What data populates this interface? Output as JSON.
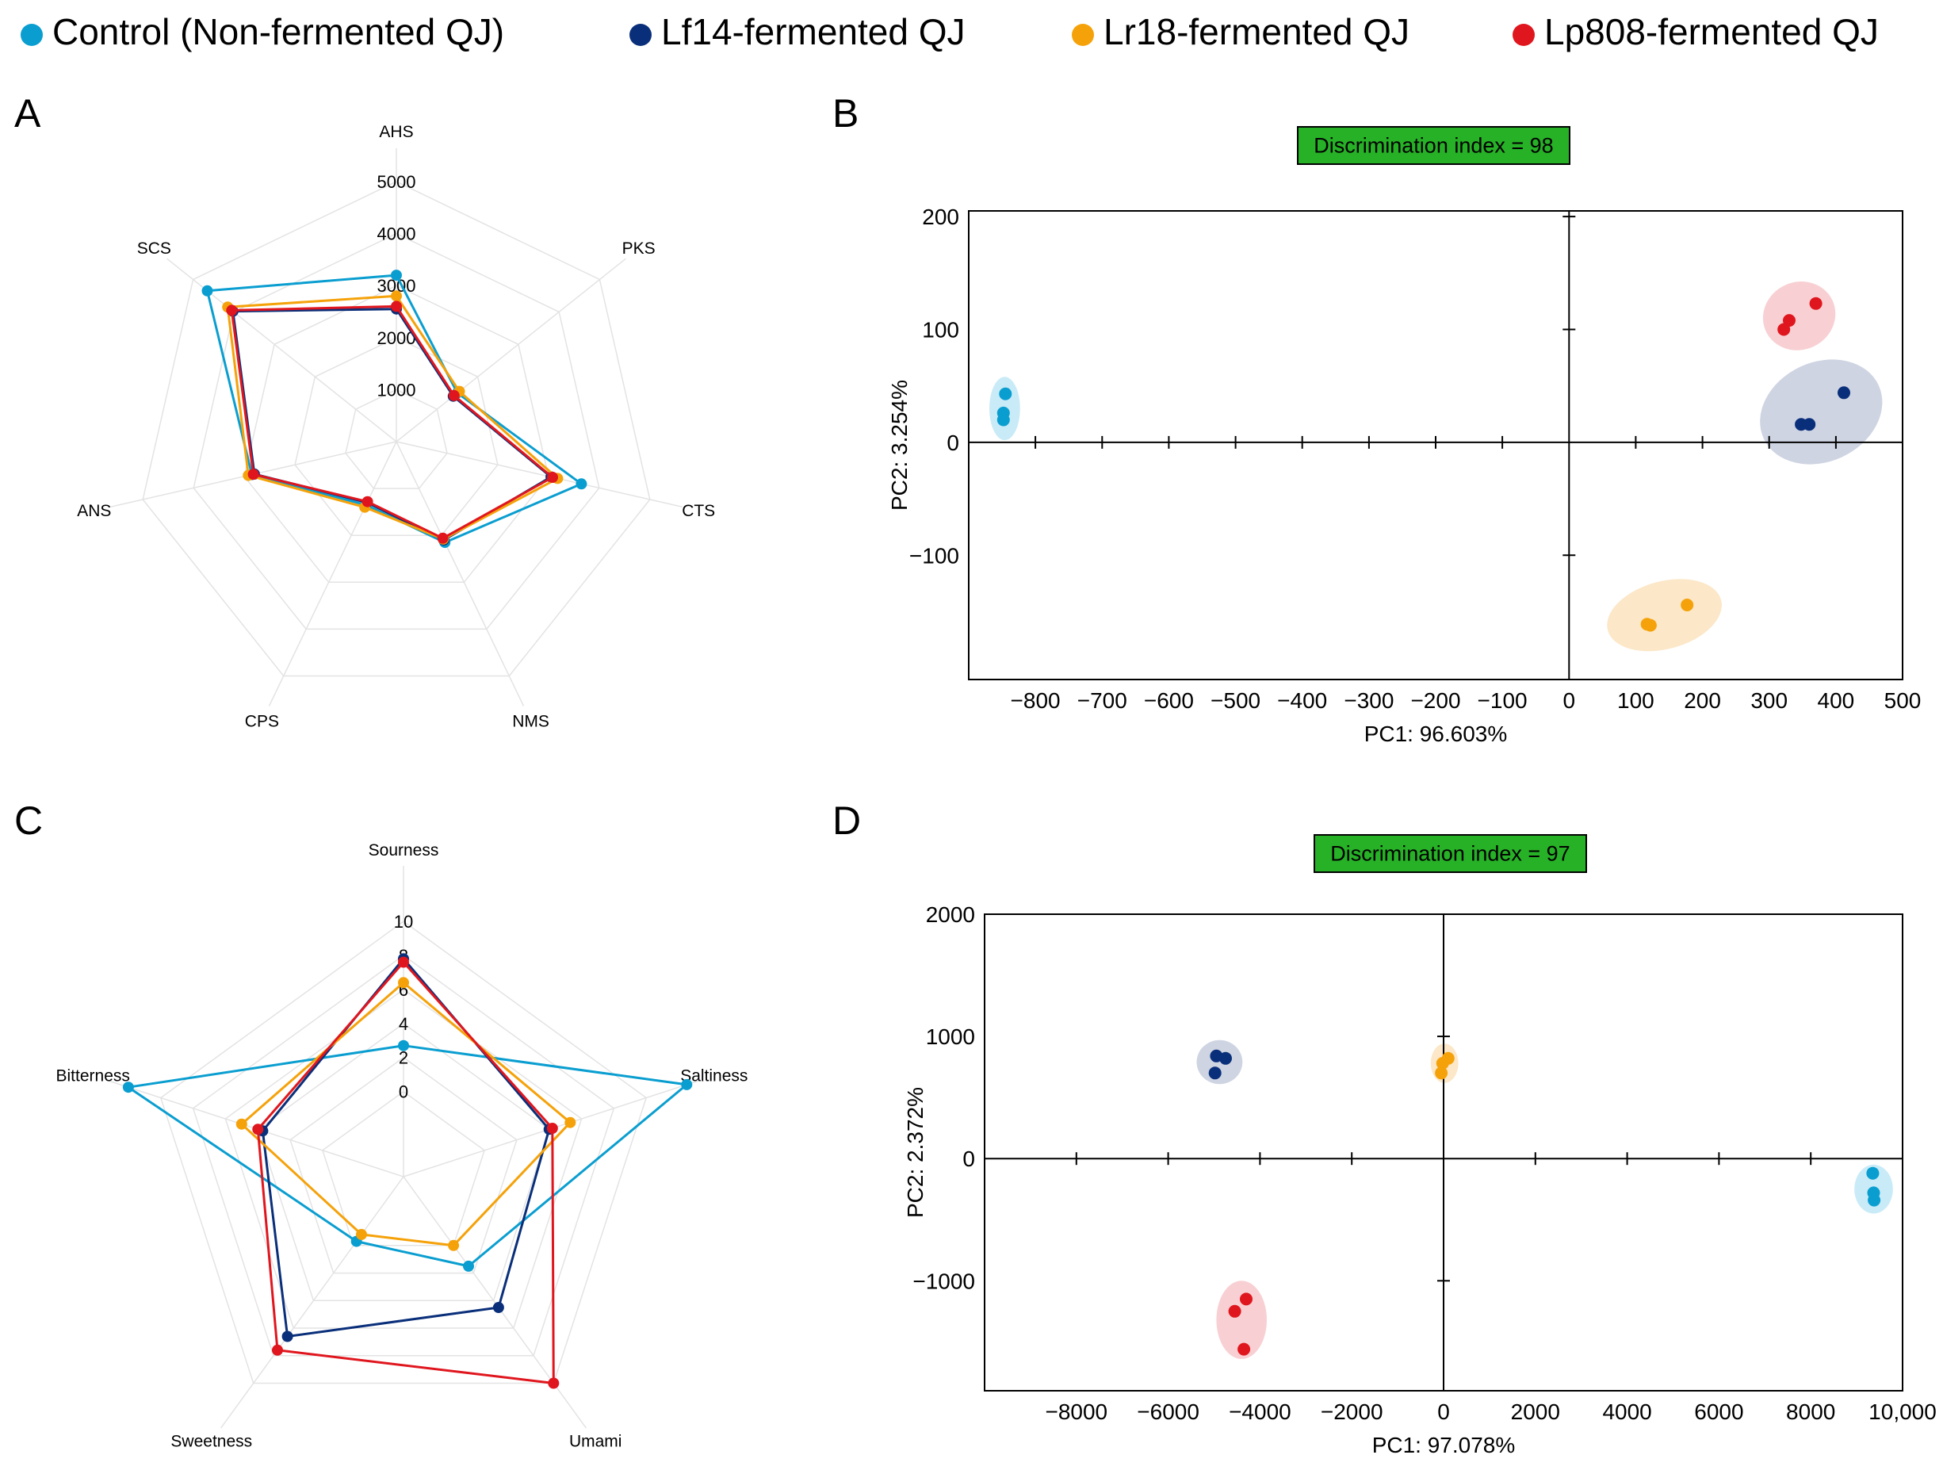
{
  "legend": {
    "items": [
      {
        "label": "Control (Non-fermented QJ)",
        "color": "#0A9ED0"
      },
      {
        "label": "Lf14-fermented QJ",
        "color": "#0A2F7A"
      },
      {
        "label": "Lr18-fermented QJ",
        "color": "#F5A20A"
      },
      {
        "label": "Lp808-fermented QJ",
        "color": "#E0161E"
      }
    ]
  },
  "panels": {
    "a": "A",
    "b": "B",
    "c": "C",
    "d": "D"
  },
  "chart_data": [
    {
      "panel": "A",
      "type": "radar",
      "axes": [
        "AHS",
        "PKS",
        "CTS",
        "NMS",
        "CPS",
        "ANS",
        "SCS"
      ],
      "rings": [
        1000,
        2000,
        3000,
        4000,
        5000
      ],
      "ring_labels": [
        "1000",
        "2000",
        "3000",
        "4000",
        "5000"
      ],
      "max": 5000,
      "series": [
        {
          "name": "Control (Non-fermented QJ)",
          "color": "#0A9ED0",
          "values": [
            3200,
            1500,
            3650,
            2150,
            1350,
            2850,
            4650
          ]
        },
        {
          "name": "Lf14-fermented QJ",
          "color": "#0A2F7A",
          "values": [
            2550,
            1400,
            3050,
            2100,
            1300,
            2800,
            4020
          ]
        },
        {
          "name": "Lr18-fermented QJ",
          "color": "#F5A20A",
          "values": [
            2800,
            1550,
            3180,
            2080,
            1400,
            2920,
            4150
          ]
        },
        {
          "name": "Lp808-fermented QJ",
          "color": "#E0161E",
          "values": [
            2600,
            1420,
            3080,
            2060,
            1280,
            2820,
            4050
          ]
        }
      ]
    },
    {
      "panel": "B",
      "type": "scatter",
      "title": "Discrimination index = 98",
      "xlabel": "PC1: 96.603%",
      "ylabel": "PC2: 3.254%",
      "xlim": [
        -900,
        500
      ],
      "ylim": [
        -210,
        205
      ],
      "xticks": [
        -800,
        -700,
        -600,
        -500,
        -400,
        -300,
        -200,
        -100,
        0,
        100,
        200,
        300,
        400,
        500
      ],
      "xtick_labels": [
        "−800",
        "−700",
        "−600",
        "−500",
        "−400",
        "−300",
        "−200",
        "−100",
        "0",
        "100",
        "200",
        "300",
        "400",
        "500"
      ],
      "yticks": [
        -100,
        0,
        100,
        200
      ],
      "ytick_labels": [
        "−100",
        "0",
        "100",
        "200"
      ],
      "series": [
        {
          "name": "Control (Non-fermented QJ)",
          "color": "#0A9ED0",
          "fill": "#BFE7F6",
          "points": [
            [
              -845,
              43
            ],
            [
              -848,
              26
            ],
            [
              -848,
              20
            ]
          ],
          "ellipse": {
            "cx": -846,
            "cy": 30,
            "rx": 23,
            "ry": 28,
            "angle": 0
          }
        },
        {
          "name": "Lf14-fermented QJ",
          "color": "#0A2F7A",
          "fill": "#C6CCDD",
          "points": [
            [
              412,
              44
            ],
            [
              348,
              16
            ],
            [
              360,
              16
            ]
          ],
          "ellipse": {
            "cx": 378,
            "cy": 27,
            "rx": 95,
            "ry": 44,
            "angle": -25
          }
        },
        {
          "name": "Lr18-fermented QJ",
          "color": "#F5A20A",
          "fill": "#FCE3BE",
          "points": [
            [
              177,
              -144
            ],
            [
              117,
              -161
            ],
            [
              122,
              -162
            ]
          ],
          "ellipse": {
            "cx": 143,
            "cy": -153,
            "rx": 88,
            "ry": 30,
            "angle": -15
          }
        },
        {
          "name": "Lp808-fermented QJ",
          "color": "#E0161E",
          "fill": "#F7C8CB",
          "points": [
            [
              370,
              123
            ],
            [
              322,
              100
            ],
            [
              330,
              108
            ]
          ],
          "ellipse": {
            "cx": 345,
            "cy": 112,
            "rx": 55,
            "ry": 30,
            "angle": -25
          }
        }
      ]
    },
    {
      "panel": "C",
      "type": "radar",
      "axes": [
        "Sourness",
        "Saltiness",
        "Umami",
        "Sweetness",
        "Bitterness"
      ],
      "rings": [
        0,
        2,
        4,
        6,
        8,
        10
      ],
      "ring_labels": [
        "0",
        "2",
        "4",
        "6",
        "8",
        "10"
      ],
      "min": -5,
      "max": 10,
      "series": [
        {
          "name": "Control (Non-fermented QJ)",
          "color": "#0A9ED0",
          "values": [
            2.7,
            12.5,
            1.5,
            -0.3,
            12.0
          ]
        },
        {
          "name": "Lf14-fermented QJ",
          "color": "#0A2F7A",
          "values": [
            7.8,
            4.0,
            4.5,
            6.6,
            3.7
          ]
        },
        {
          "name": "Lr18-fermented QJ",
          "color": "#F5A20A",
          "values": [
            6.4,
            5.3,
            0.0,
            -0.8,
            5.0
          ]
        },
        {
          "name": "Lp808-fermented QJ",
          "color": "#E0161E",
          "values": [
            7.6,
            4.2,
            10.0,
            7.6,
            4.0
          ]
        }
      ]
    },
    {
      "panel": "D",
      "type": "scatter",
      "title": "Discrimination index = 97",
      "xlabel": "PC1: 97.078%",
      "ylabel": "PC2: 2.372%",
      "xlim": [
        -10000,
        10000
      ],
      "ylim": [
        -1900,
        2000
      ],
      "xticks": [
        -8000,
        -6000,
        -4000,
        -2000,
        0,
        2000,
        4000,
        6000,
        8000,
        10000
      ],
      "xtick_labels": [
        "−8000",
        "−6000",
        "−4000",
        "−2000",
        "0",
        "2000",
        "4000",
        "6000",
        "8000",
        "10,000"
      ],
      "yticks": [
        -1000,
        0,
        1000,
        2000
      ],
      "ytick_labels": [
        "−1000",
        "0",
        "1000",
        "2000"
      ],
      "series": [
        {
          "name": "Control (Non-fermented QJ)",
          "color": "#0A9ED0",
          "fill": "#BFE7F6",
          "points": [
            [
              9350,
              -120
            ],
            [
              9370,
              -280
            ],
            [
              9380,
              -340
            ]
          ],
          "ellipse": {
            "cx": 9370,
            "cy": -250,
            "rx": 420,
            "ry": 200,
            "angle": 0
          }
        },
        {
          "name": "Lf14-fermented QJ",
          "color": "#0A2F7A",
          "fill": "#C6CCDD",
          "points": [
            [
              -4950,
              840
            ],
            [
              -4750,
              820
            ],
            [
              -4980,
              700
            ]
          ],
          "ellipse": {
            "cx": -4880,
            "cy": 790,
            "rx": 500,
            "ry": 180,
            "angle": 0
          }
        },
        {
          "name": "Lr18-fermented QJ",
          "color": "#F5A20A",
          "fill": "#FCE3BE",
          "points": [
            [
              100,
              820
            ],
            [
              -20,
              780
            ],
            [
              -50,
              700
            ]
          ],
          "ellipse": {
            "cx": 20,
            "cy": 780,
            "rx": 300,
            "ry": 160,
            "angle": 0
          }
        },
        {
          "name": "Lp808-fermented QJ",
          "color": "#E0161E",
          "fill": "#F7C8CB",
          "points": [
            [
              -4300,
              -1150
            ],
            [
              -4550,
              -1250
            ],
            [
              -4350,
              -1560
            ]
          ],
          "ellipse": {
            "cx": -4400,
            "cy": -1320,
            "rx": 550,
            "ry": 320,
            "angle": 0
          }
        }
      ]
    }
  ]
}
